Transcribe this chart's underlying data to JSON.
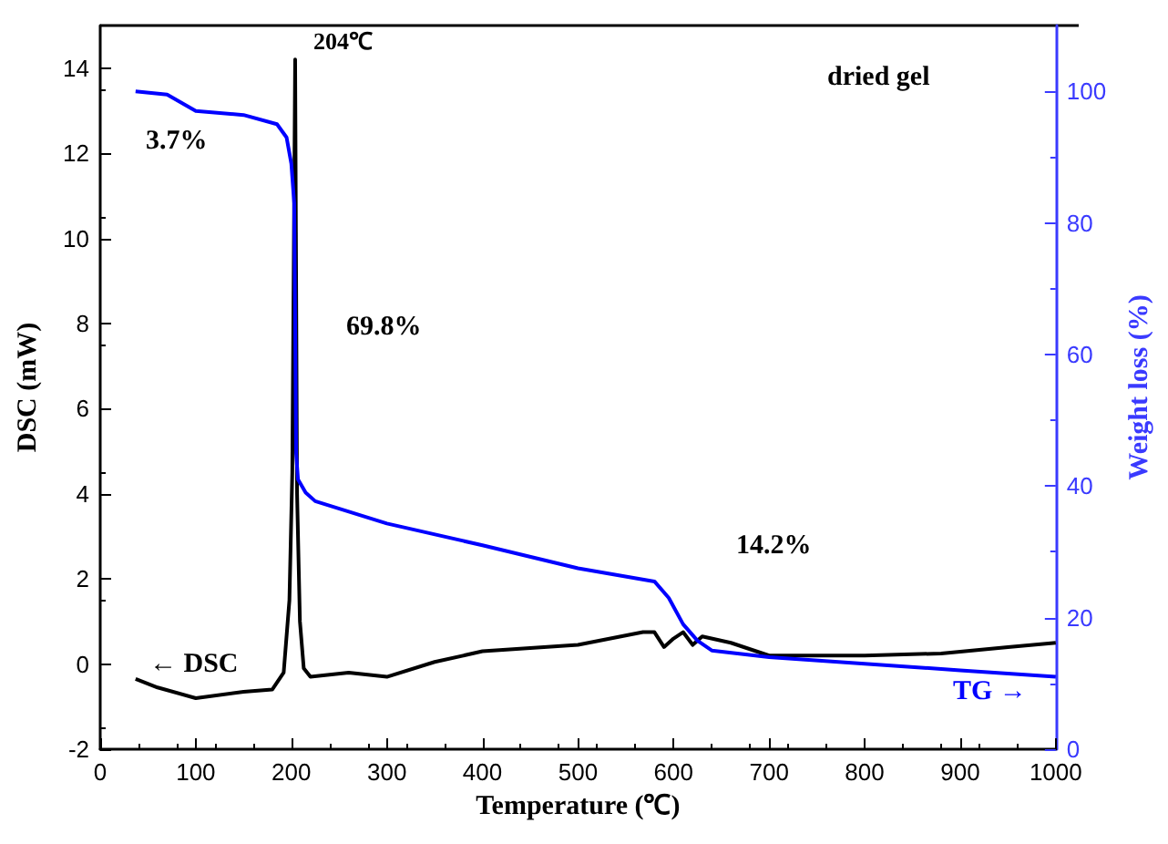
{
  "chart_data": {
    "type": "line",
    "xlabel": "Temperature (℃)",
    "ylabel": "DSC (mW)",
    "y2label": "Weight loss (%)",
    "xlim": [
      0,
      1000
    ],
    "xticks": [
      0,
      100,
      200,
      300,
      400,
      500,
      600,
      700,
      800,
      900,
      1000
    ],
    "ylim": [
      -2,
      15
    ],
    "yticks": [
      -2,
      0,
      2,
      4,
      6,
      8,
      10,
      12,
      14
    ],
    "y2lim": [
      0,
      110
    ],
    "y2ticks": [
      0,
      20,
      40,
      60,
      80,
      100
    ],
    "grid": false,
    "marker": "none",
    "line_style": "solid",
    "series": [
      {
        "color": "#000000",
        "x": [
          37,
          60,
          100,
          150,
          180,
          192,
          198,
          201,
          204,
          206,
          209,
          213,
          220,
          260,
          300,
          350,
          400,
          500,
          568,
          580,
          590,
          600,
          610,
          620,
          630,
          660,
          700,
          800,
          880,
          950,
          1000
        ],
        "values": [
          -0.35,
          -0.55,
          -0.8,
          -0.65,
          -0.6,
          -0.2,
          1.5,
          4.5,
          14.2,
          4,
          1,
          -0.1,
          -0.3,
          -0.2,
          -0.3,
          0.05,
          0.3,
          0.45,
          0.75,
          0.75,
          0.4,
          0.6,
          0.75,
          0.45,
          0.65,
          0.5,
          0.2,
          0.2,
          0.25,
          0.4,
          0.5
        ]
      },
      {
        "color": "#0000ff",
        "axis": "y2",
        "x": [
          37,
          70,
          100,
          150,
          185,
          195,
          200,
          203,
          204,
          205,
          207,
          215,
          225,
          300,
          400,
          500,
          580,
          595,
          610,
          625,
          640,
          700,
          800,
          900,
          1000
        ],
        "values": [
          100,
          99.5,
          97,
          96.4,
          95,
          93,
          89,
          83,
          65,
          45,
          41,
          39,
          37.7,
          34.3,
          31,
          27.5,
          25.5,
          23,
          19,
          16.5,
          15,
          14,
          13,
          12,
          11
        ]
      }
    ],
    "annotations": [
      "204℃",
      "3.7%",
      "69.8%",
      "14.2%",
      "dried gel",
      "← DSC",
      "TG →"
    ]
  }
}
